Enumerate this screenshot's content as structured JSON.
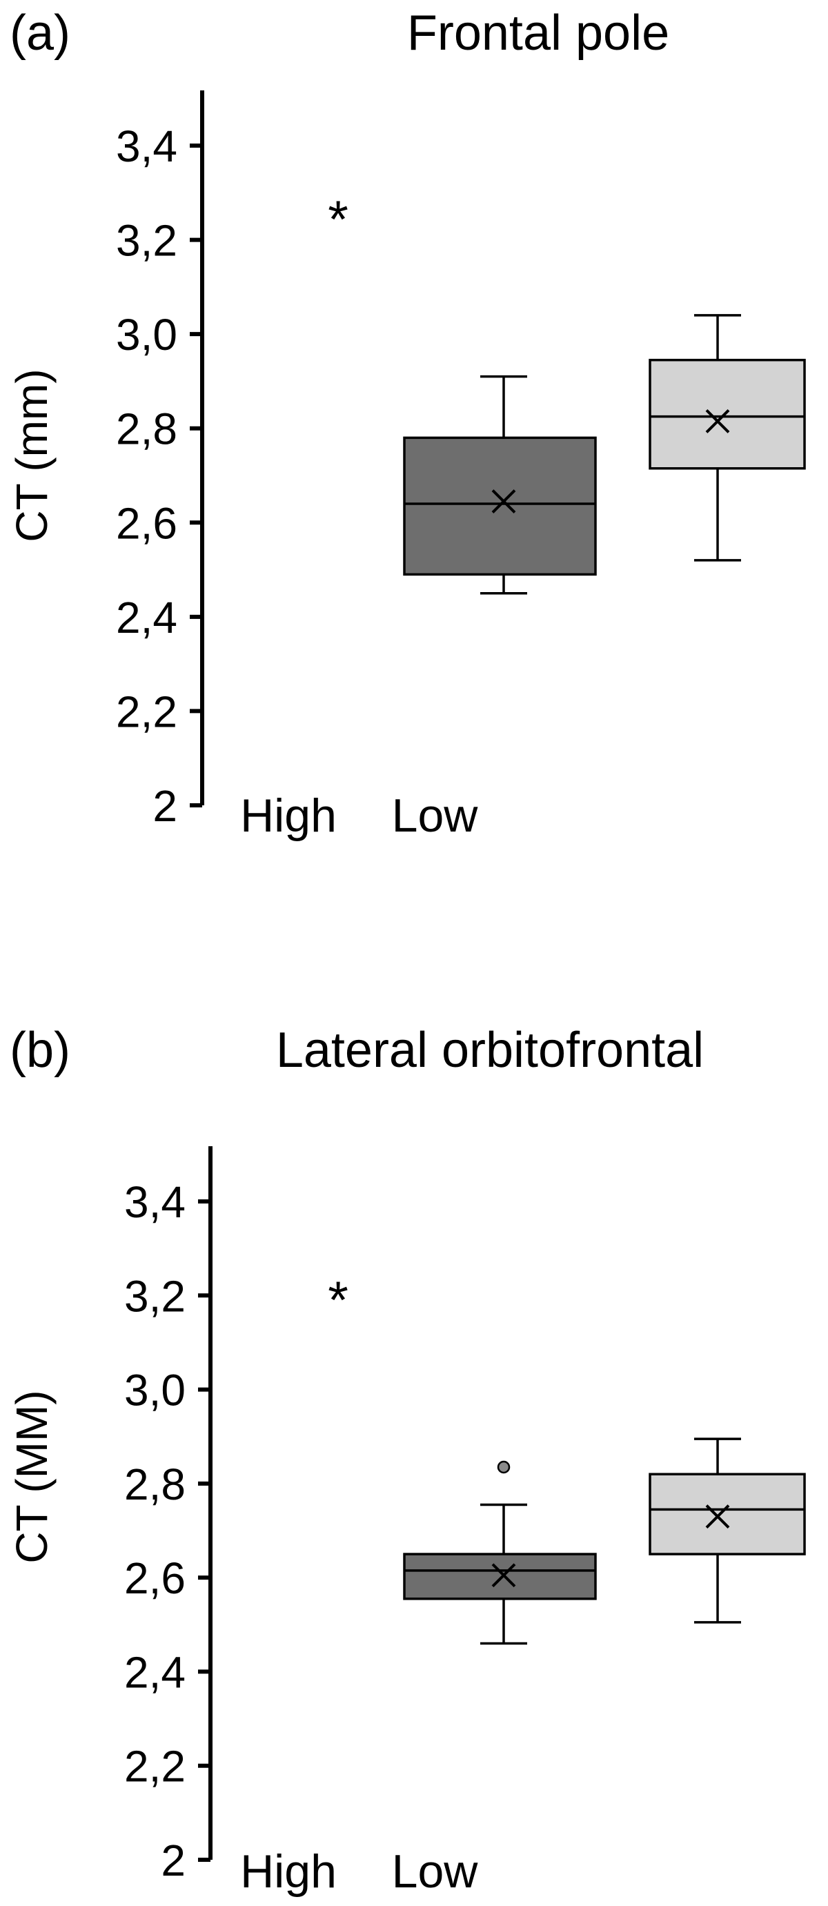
{
  "chart_data": [
    {
      "type": "box",
      "panel_label": "(a)",
      "title": "Frontal pole",
      "ylabel": "CT (mm)",
      "ylim": [
        2,
        3.4
      ],
      "yticks": [
        "3,4",
        "3,2",
        "3,0",
        "2,8",
        "2,6",
        "2,4",
        "2,2",
        "2"
      ],
      "categories": [
        "High",
        "Low"
      ],
      "significance": "*",
      "colors": {
        "High": "#6e6e6e",
        "Low": "#d3d3d3"
      },
      "boxes": [
        {
          "name": "High",
          "whisker_low": 2.45,
          "q1": 2.49,
          "median": 2.64,
          "q3": 2.78,
          "whisker_high": 2.91,
          "mean": 2.645,
          "outliers": []
        },
        {
          "name": "Low",
          "whisker_low": 2.52,
          "q1": 2.715,
          "median": 2.825,
          "q3": 2.945,
          "whisker_high": 3.04,
          "mean": 2.815,
          "outliers": []
        }
      ]
    },
    {
      "type": "box",
      "panel_label": "(b)",
      "title": "Lateral orbitofrontal",
      "ylabel": "CT (MM)",
      "ylim": [
        2,
        3.4
      ],
      "yticks": [
        "3,4",
        "3,2",
        "3,0",
        "2,8",
        "2,6",
        "2,4",
        "2,2",
        "2"
      ],
      "categories": [
        "High",
        "Low"
      ],
      "significance": "*",
      "colors": {
        "High": "#6e6e6e",
        "Low": "#d3d3d3"
      },
      "boxes": [
        {
          "name": "High",
          "whisker_low": 2.46,
          "q1": 2.555,
          "median": 2.615,
          "q3": 2.65,
          "whisker_high": 2.755,
          "mean": 2.605,
          "outliers": [
            2.835
          ]
        },
        {
          "name": "Low",
          "whisker_low": 2.505,
          "q1": 2.65,
          "median": 2.745,
          "q3": 2.82,
          "whisker_high": 2.895,
          "mean": 2.73,
          "outliers": []
        }
      ]
    }
  ]
}
